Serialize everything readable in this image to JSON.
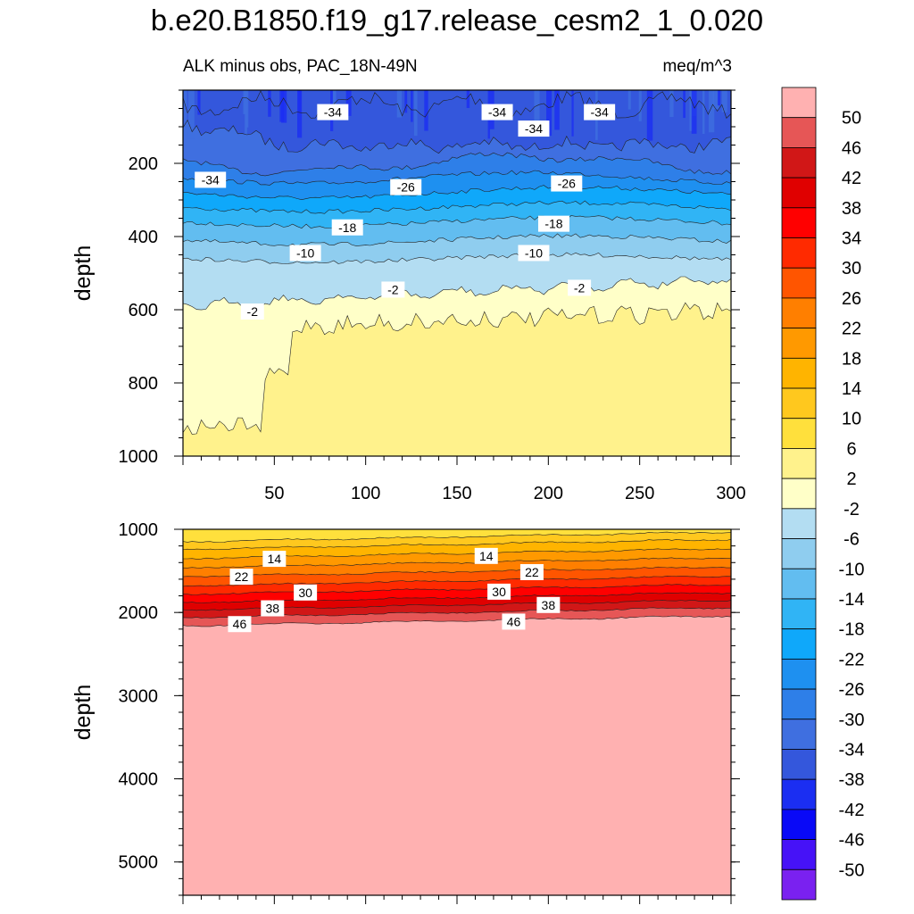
{
  "page": {
    "title": "b.e20.B1850.f19_g17.release_cesm2_1_0.020",
    "subtitle_left": "ALK minus obs, PAC_18N-49N",
    "subtitle_right": "meq/m^3"
  },
  "chart_data": [
    {
      "type": "heatmap",
      "panel": "upper",
      "title": "ALK minus obs, PAC_18N-49N",
      "units": "meq/m^3",
      "ylabel": "depth",
      "xlabel": "",
      "xlim": [
        0,
        300
      ],
      "ylim": [
        1000,
        0
      ],
      "x_ticks": [
        50,
        100,
        150,
        200,
        250,
        300
      ],
      "y_ticks": [
        200,
        400,
        600,
        800,
        1000
      ],
      "contour_labels": [
        {
          "text": "-34",
          "x": 82,
          "y": 60
        },
        {
          "text": "-34",
          "x": 172,
          "y": 60
        },
        {
          "text": "-34",
          "x": 192,
          "y": 105
        },
        {
          "text": "-34",
          "x": 228,
          "y": 60
        },
        {
          "text": "-34",
          "x": 15,
          "y": 245
        },
        {
          "text": "-26",
          "x": 122,
          "y": 265
        },
        {
          "text": "-26",
          "x": 210,
          "y": 255
        },
        {
          "text": "-18",
          "x": 90,
          "y": 375
        },
        {
          "text": "-18",
          "x": 203,
          "y": 365
        },
        {
          "text": "-10",
          "x": 67,
          "y": 445
        },
        {
          "text": "-10",
          "x": 192,
          "y": 445
        },
        {
          "text": "-2",
          "x": 115,
          "y": 545
        },
        {
          "text": "-2",
          "x": 217,
          "y": 540
        },
        {
          "text": "-2",
          "x": 38,
          "y": 605
        }
      ]
    },
    {
      "type": "heatmap",
      "panel": "lower",
      "ylabel": "depth",
      "xlabel": "",
      "xlim": [
        0,
        300
      ],
      "ylim": [
        5400,
        1000
      ],
      "y_ticks": [
        1000,
        2000,
        3000,
        4000,
        5000
      ],
      "contour_labels": [
        {
          "text": "14",
          "x": 50,
          "y": 1355
        },
        {
          "text": "14",
          "x": 166,
          "y": 1320
        },
        {
          "text": "22",
          "x": 32,
          "y": 1570
        },
        {
          "text": "22",
          "x": 191,
          "y": 1515
        },
        {
          "text": "30",
          "x": 67,
          "y": 1760
        },
        {
          "text": "30",
          "x": 173,
          "y": 1750
        },
        {
          "text": "38",
          "x": 49,
          "y": 1950
        },
        {
          "text": "38",
          "x": 200,
          "y": 1910
        },
        {
          "text": "46",
          "x": 31,
          "y": 2140
        },
        {
          "text": "46",
          "x": 181,
          "y": 2110
        }
      ]
    }
  ],
  "colorbar": {
    "labels": [
      "50",
      "46",
      "42",
      "38",
      "34",
      "30",
      "26",
      "22",
      "18",
      "14",
      "10",
      "6",
      "2",
      "-2",
      "-6",
      "-10",
      "-14",
      "-18",
      "-22",
      "-26",
      "-30",
      "-34",
      "-38",
      "-42",
      "-46",
      "-50"
    ],
    "colors": [
      "#ffb1b1",
      "#e65656",
      "#d11717",
      "#e00000",
      "#ff0000",
      "#ff2a00",
      "#ff5500",
      "#ff7f00",
      "#ff9900",
      "#ffb400",
      "#ffc81e",
      "#ffe03c",
      "#fff28c",
      "#ffffc8",
      "#b3ddf2",
      "#8fcdef",
      "#62bdf0",
      "#30b4f5",
      "#0fa8fa",
      "#1e90f0",
      "#2e7fe8",
      "#3f6fe0",
      "#3457dc",
      "#1b2ef2",
      "#0909f7",
      "#4612f7",
      "#7a21f0"
    ]
  }
}
